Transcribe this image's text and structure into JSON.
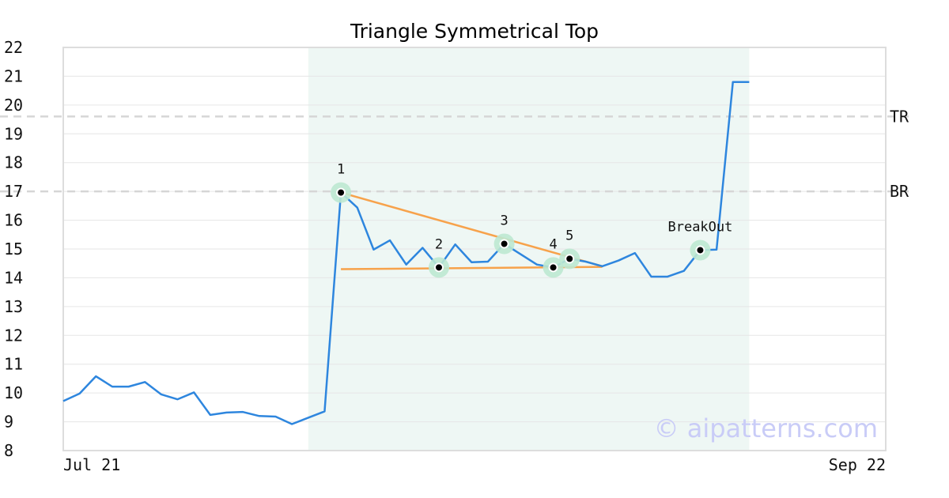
{
  "chart_data": {
    "type": "line",
    "title": "Triangle Symmetrical Top",
    "watermark": "© aipatterns.com",
    "y_ticks": [
      "8",
      "9",
      "10",
      "11",
      "12",
      "13",
      "14",
      "15",
      "16",
      "17",
      "18",
      "19",
      "20",
      "21",
      "22"
    ],
    "ylim": [
      8,
      22
    ],
    "x_tick_labels": [
      {
        "label": "Jul 21",
        "index": 0
      },
      {
        "label": "Sep 22",
        "index": 46
      }
    ],
    "xlim": [
      0,
      46
    ],
    "highlight_range": [
      15,
      42
    ],
    "grid": true,
    "colors": {
      "price": "#2e86de",
      "trendline": "#f7a24b",
      "highlight": "#eef7f4",
      "marker_halo": "#bde8d2",
      "level_line": "#d6d6d6",
      "grid": "#e6e6e6",
      "frame": "#dddddd"
    },
    "series": [
      {
        "values": [
          9.72,
          9.98,
          10.58,
          10.22,
          10.22,
          10.38,
          9.95,
          9.78,
          10.02,
          9.24,
          9.32,
          9.34,
          9.2,
          9.18,
          8.92,
          9.14,
          9.36,
          16.96,
          16.44,
          14.98,
          15.3,
          14.46,
          15.04,
          14.36,
          15.16,
          14.54,
          14.56,
          15.18,
          14.82,
          14.46,
          14.36,
          14.66,
          14.56,
          14.4,
          14.6,
          14.86,
          14.04,
          14.04,
          14.24,
          14.96,
          14.98,
          20.8,
          20.8
        ]
      }
    ],
    "levels": [
      {
        "label": "TR",
        "value": 19.6
      },
      {
        "label": "BR",
        "value": 17.0
      }
    ],
    "trendlines": [
      {
        "from": [
          17,
          16.96
        ],
        "to": [
          33,
          14.4
        ]
      },
      {
        "from": [
          17,
          14.3
        ],
        "to": [
          33,
          14.38
        ]
      }
    ],
    "points": [
      {
        "label": "1",
        "index": 17,
        "value": 16.96
      },
      {
        "label": "2",
        "index": 23,
        "value": 14.36
      },
      {
        "label": "3",
        "index": 27,
        "value": 15.18
      },
      {
        "label": "4",
        "index": 30,
        "value": 14.36
      },
      {
        "label": "5",
        "index": 31,
        "value": 14.66
      },
      {
        "label": "BreakOut",
        "index": 39,
        "value": 14.96
      }
    ]
  }
}
